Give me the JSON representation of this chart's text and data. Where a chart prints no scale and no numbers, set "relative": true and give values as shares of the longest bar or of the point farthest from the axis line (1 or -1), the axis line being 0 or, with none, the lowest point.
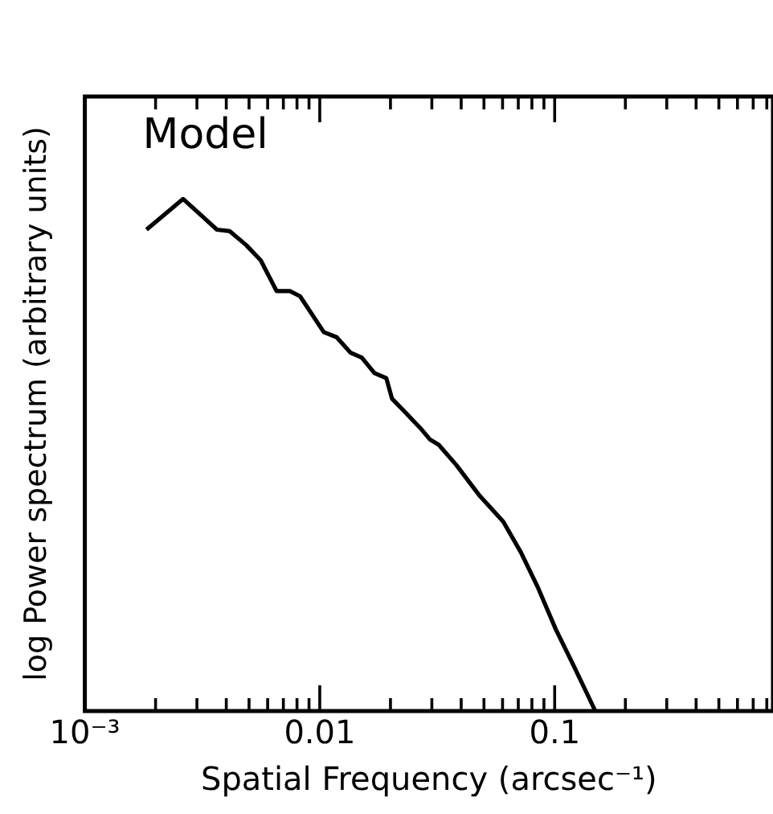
{
  "chart_data": {
    "type": "line",
    "xlabel": "Spatial Frequency (arcsec⁻¹)",
    "ylabel": "log Power spectrum (arbitrary units)",
    "annotations": [
      "Model"
    ],
    "relative": true,
    "log": "x",
    "grid": false,
    "legend": false,
    "marker": "none",
    "line_style": "solid",
    "xlim": [
      0.001,
      0.85
    ],
    "xticks": [
      {
        "value": 0.001,
        "label": "10⁻³"
      },
      {
        "value": 0.002,
        "label": null
      },
      {
        "value": 0.003,
        "label": null
      },
      {
        "value": 0.004,
        "label": null
      },
      {
        "value": 0.005,
        "label": null
      },
      {
        "value": 0.006,
        "label": null
      },
      {
        "value": 0.007,
        "label": null
      },
      {
        "value": 0.008,
        "label": null
      },
      {
        "value": 0.009,
        "label": null
      },
      0.01,
      {
        "value": 0.02,
        "label": null
      },
      {
        "value": 0.03,
        "label": null
      },
      {
        "value": 0.04,
        "label": null
      },
      {
        "value": 0.05,
        "label": null
      },
      {
        "value": 0.06,
        "label": null
      },
      {
        "value": 0.07,
        "label": null
      },
      {
        "value": 0.08,
        "label": null
      },
      {
        "value": 0.09,
        "label": null
      },
      0.1,
      {
        "value": 0.2,
        "label": null
      },
      {
        "value": 0.3,
        "label": null
      },
      {
        "value": 0.4,
        "label": null
      },
      {
        "value": 0.5,
        "label": null
      },
      {
        "value": 0.6,
        "label": null
      },
      {
        "value": 0.7,
        "label": null
      },
      {
        "value": 0.8,
        "label": null
      }
    ],
    "x": [
      0.00183,
      0.00262,
      0.00365,
      0.00414,
      0.00486,
      0.00561,
      0.00655,
      0.00746,
      0.00824,
      0.0104,
      0.0118,
      0.0135,
      0.0151,
      0.0171,
      0.0192,
      0.0203,
      0.0235,
      0.0271,
      0.0295,
      0.0321,
      0.0382,
      0.048,
      0.0604,
      0.0718,
      0.0851,
      0.101,
      0.12,
      0.149
    ],
    "series": [
      {
        "color": "#000000",
        "values": [
          0.94,
          1.0,
          0.94,
          0.937,
          0.91,
          0.88,
          0.82,
          0.82,
          0.81,
          0.74,
          0.73,
          0.7,
          0.69,
          0.66,
          0.65,
          0.61,
          0.58,
          0.55,
          0.53,
          0.52,
          0.48,
          0.42,
          0.37,
          0.31,
          0.24,
          0.16,
          0.09,
          0
        ]
      }
    ]
  }
}
